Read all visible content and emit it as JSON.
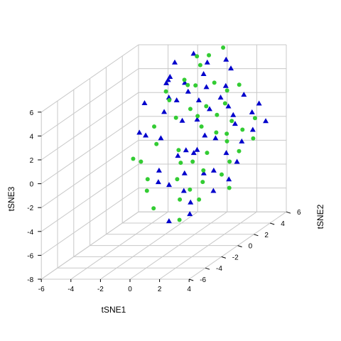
{
  "chart_data": {
    "type": "scatter",
    "projection": "3d",
    "grid": true,
    "axes": {
      "x": {
        "label": "tSNE1",
        "ticks": [
          "-6",
          "-4",
          "-2",
          "0",
          "2",
          "4"
        ],
        "range": [
          -6,
          5
        ]
      },
      "y": {
        "label": "tSNE2",
        "ticks": [
          "-6",
          "-4",
          "-2",
          "0",
          "2",
          "4",
          "6"
        ],
        "range": [
          -7,
          6
        ]
      },
      "z": {
        "label": "tSNE3",
        "ticks": [
          "-8",
          "-6",
          "-4",
          "-2",
          "0",
          "2",
          "4",
          "6"
        ],
        "range": [
          -8,
          6
        ]
      }
    },
    "series": [
      {
        "marker": "triangle",
        "color": "#0000CC",
        "points": [
          [
            -2.9,
            4.0,
            4.0
          ],
          [
            -3.0,
            5.0,
            5.0
          ],
          [
            -2.5,
            3.5,
            4.5
          ],
          [
            -3.3,
            4.5,
            3.5
          ],
          [
            -3.4,
            2.0,
            3.0
          ],
          [
            -2.3,
            3.0,
            3.0
          ],
          [
            -1.5,
            3.5,
            4.0
          ],
          [
            -1.0,
            3.0,
            3.5
          ],
          [
            -0.5,
            4.0,
            4.5
          ],
          [
            -1.8,
            1.5,
            2.5
          ],
          [
            -3.2,
            1.0,
            1.0
          ],
          [
            -0.8,
            5.0,
            5.0
          ],
          [
            0.2,
            5.5,
            5.0
          ],
          [
            0.0,
            2.5,
            3.0
          ],
          [
            -0.3,
            1.0,
            2.0
          ],
          [
            -1.2,
            0.0,
            1.0
          ],
          [
            1.0,
            2.0,
            2.5
          ],
          [
            0.6,
            1.2,
            2.0
          ],
          [
            1.2,
            3.0,
            3.0
          ],
          [
            2.0,
            2.5,
            2.5
          ],
          [
            1.5,
            0.5,
            1.0
          ],
          [
            0.5,
            -1.0,
            0.0
          ],
          [
            1.8,
            -1.0,
            0.5
          ],
          [
            2.5,
            0.0,
            1.0
          ],
          [
            3.0,
            1.5,
            1.5
          ],
          [
            3.5,
            -0.5,
            0.0
          ],
          [
            2.8,
            -2.0,
            -1.0
          ],
          [
            4.0,
            0.5,
            0.5
          ],
          [
            4.5,
            -1.0,
            -0.5
          ],
          [
            2.0,
            -3.0,
            -2.0
          ],
          [
            1.0,
            -3.0,
            -1.5
          ],
          [
            3.0,
            -4.0,
            -2.5
          ],
          [
            4.0,
            -3.0,
            -2.0
          ],
          [
            3.5,
            -5.0,
            -3.0
          ],
          [
            2.2,
            -5.2,
            -3.5
          ],
          [
            1.5,
            -2.0,
            -1.0
          ],
          [
            -0.5,
            -1.5,
            -1.0
          ],
          [
            0.5,
            0.0,
            0.0
          ],
          [
            -1.5,
            2.5,
            3.0
          ],
          [
            -2.0,
            5.5,
            5.5
          ],
          [
            2.5,
            3.5,
            3.0
          ],
          [
            4.2,
            1.5,
            1.0
          ],
          [
            4.8,
            2.0,
            1.5
          ],
          [
            3.8,
            3.0,
            2.5
          ],
          [
            1.0,
            4.0,
            3.5
          ],
          [
            -0.2,
            3.8,
            3.5
          ],
          [
            2.6,
            2.0,
            2.0
          ],
          [
            3.2,
            -1.5,
            -1.0
          ],
          [
            1.3,
            -0.5,
            0.0
          ],
          [
            0.0,
            -2.5,
            -1.5
          ],
          [
            -2.5,
            0.5,
            1.0
          ],
          [
            0.8,
            5.0,
            4.5
          ],
          [
            3.6,
            2.5,
            2.0
          ],
          [
            4.5,
            -2.0,
            -1.5
          ]
        ]
      },
      {
        "marker": "circle",
        "color": "#33CC33",
        "points": [
          [
            -1.5,
            5.0,
            5.5
          ],
          [
            -1.0,
            4.5,
            5.0
          ],
          [
            0.0,
            5.5,
            6.0
          ],
          [
            -0.5,
            3.0,
            4.0
          ],
          [
            0.5,
            3.5,
            4.0
          ],
          [
            -2.0,
            2.5,
            3.0
          ],
          [
            -2.5,
            3.0,
            3.5
          ],
          [
            -1.0,
            1.5,
            2.0
          ],
          [
            0.5,
            2.5,
            2.5
          ],
          [
            1.5,
            3.0,
            2.5
          ],
          [
            1.0,
            1.0,
            1.5
          ],
          [
            2.0,
            1.0,
            1.0
          ],
          [
            2.5,
            2.0,
            1.5
          ],
          [
            3.0,
            0.5,
            0.5
          ],
          [
            -1.5,
            0.0,
            0.5
          ],
          [
            -2.0,
            -1.0,
            -0.5
          ],
          [
            0.0,
            0.0,
            0.0
          ],
          [
            1.5,
            -1.0,
            -0.5
          ],
          [
            2.5,
            -1.5,
            -1.0
          ],
          [
            3.5,
            1.5,
            1.0
          ],
          [
            4.5,
            1.0,
            0.5
          ],
          [
            4.0,
            -1.0,
            -0.5
          ],
          [
            3.0,
            -2.5,
            -1.5
          ],
          [
            4.8,
            -2.5,
            -2.0
          ],
          [
            2.0,
            -3.5,
            -2.5
          ],
          [
            1.0,
            -2.0,
            -1.5
          ],
          [
            -0.5,
            -3.0,
            -2.0
          ],
          [
            -1.0,
            -2.0,
            -1.5
          ],
          [
            -2.8,
            -0.5,
            -0.5
          ],
          [
            0.5,
            -4.0,
            -3.0
          ],
          [
            2.8,
            -5.0,
            -3.5
          ],
          [
            1.5,
            2.0,
            2.0
          ],
          [
            3.8,
            2.5,
            1.5
          ],
          [
            -1.8,
            4.0,
            4.0
          ],
          [
            0.3,
            1.8,
            2.0
          ],
          [
            2.2,
            -0.5,
            0.0
          ],
          [
            3.3,
            -3.5,
            -2.5
          ],
          [
            -0.8,
            5.2,
            5.5
          ],
          [
            1.8,
            4.2,
            3.5
          ],
          [
            4.2,
            -0.2,
            0.0
          ],
          [
            -2.2,
            1.0,
            1.5
          ],
          [
            0.8,
            -1.2,
            -0.5
          ],
          [
            2.6,
            1.2,
            0.8
          ],
          [
            -0.3,
            2.0,
            2.5
          ],
          [
            3.9,
            -1.8,
            -1.2
          ],
          [
            1.2,
            3.8,
            3.2
          ],
          [
            -1.3,
            3.5,
            3.8
          ],
          [
            2.3,
            -2.8,
            -2.0
          ]
        ]
      }
    ]
  }
}
